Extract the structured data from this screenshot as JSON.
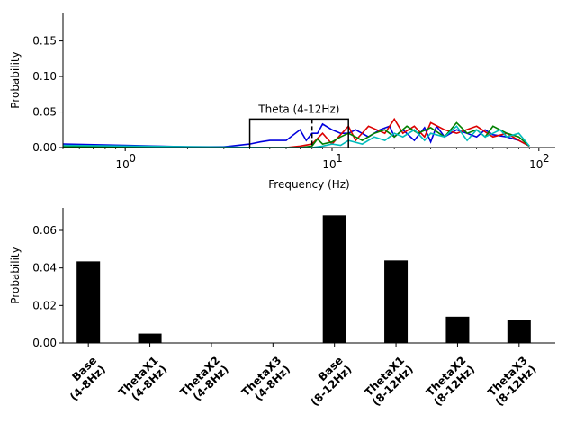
{
  "chart_data": [
    {
      "type": "line",
      "xscale": "log",
      "xlabel": "Frequency (Hz)",
      "ylabel": "Probability",
      "xlim": [
        0.5,
        120
      ],
      "ylim": [
        0,
        0.19
      ],
      "xticks": [
        {
          "value": 1,
          "label": "10",
          "exp": "0"
        },
        {
          "value": 10,
          "label": "10",
          "exp": "1"
        },
        {
          "value": 100,
          "label": "10",
          "exp": "2"
        }
      ],
      "yticks": [
        {
          "value": 0,
          "label": "0.00"
        },
        {
          "value": 0.05,
          "label": "0.05"
        },
        {
          "value": 0.1,
          "label": "0.10"
        },
        {
          "value": 0.15,
          "label": "0.15"
        }
      ],
      "annotation": {
        "text": "Theta (4-12Hz)",
        "from": 4,
        "to": 12,
        "height": 0.04,
        "dashed_at": 8
      },
      "series": [
        {
          "color": "#0000dd",
          "x": [
            0.5,
            1,
            2,
            3,
            4,
            4.5,
            5,
            6,
            7,
            7.5,
            8,
            8.5,
            9,
            10,
            11,
            12,
            13,
            15,
            17,
            19,
            20,
            22,
            25,
            28,
            30,
            32,
            35,
            40,
            45,
            50,
            55,
            60,
            70,
            80,
            90
          ],
          "y": [
            0.005,
            0.003,
            0.001,
            0.001,
            0.005,
            0.008,
            0.01,
            0.01,
            0.025,
            0.01,
            0.02,
            0.02,
            0.033,
            0.025,
            0.02,
            0.02,
            0.025,
            0.015,
            0.025,
            0.03,
            0.015,
            0.025,
            0.01,
            0.028,
            0.008,
            0.03,
            0.015,
            0.025,
            0.02,
            0.015,
            0.025,
            0.018,
            0.015,
            0.01,
            0.002
          ]
        },
        {
          "color": "#dd0000",
          "x": [
            0.5,
            3,
            6,
            7,
            8,
            9,
            10,
            12,
            13,
            15,
            18,
            20,
            22,
            25,
            28,
            30,
            35,
            40,
            50,
            60,
            70,
            80,
            90
          ],
          "y": [
            0.001,
            0.0,
            0.0,
            0.002,
            0.005,
            0.02,
            0.005,
            0.03,
            0.01,
            0.03,
            0.02,
            0.04,
            0.02,
            0.03,
            0.015,
            0.035,
            0.025,
            0.02,
            0.03,
            0.015,
            0.02,
            0.01,
            0.002
          ]
        },
        {
          "color": "#008000",
          "x": [
            0.5,
            5,
            7,
            8,
            8.5,
            9,
            10,
            11,
            12,
            14,
            16,
            18,
            20,
            23,
            26,
            30,
            35,
            40,
            45,
            50,
            55,
            60,
            70,
            80,
            90
          ],
          "y": [
            0.001,
            0.0,
            0.0,
            0.002,
            0.012,
            0.005,
            0.008,
            0.015,
            0.02,
            0.01,
            0.02,
            0.025,
            0.015,
            0.03,
            0.02,
            0.028,
            0.015,
            0.035,
            0.02,
            0.025,
            0.015,
            0.03,
            0.02,
            0.015,
            0.002
          ]
        },
        {
          "color": "#00bbbb",
          "x": [
            0.5,
            5,
            8,
            9,
            10,
            11,
            12,
            14,
            16,
            18,
            20,
            22,
            25,
            28,
            30,
            35,
            40,
            45,
            50,
            55,
            60,
            65,
            70,
            80,
            90
          ],
          "y": [
            0.003,
            0.0,
            0.0,
            0.002,
            0.005,
            0.003,
            0.01,
            0.005,
            0.015,
            0.01,
            0.02,
            0.015,
            0.025,
            0.01,
            0.02,
            0.015,
            0.03,
            0.01,
            0.025,
            0.015,
            0.02,
            0.025,
            0.015,
            0.02,
            0.002
          ]
        }
      ]
    },
    {
      "type": "bar",
      "ylabel": "Probability",
      "ylim": [
        0,
        0.072
      ],
      "color": "#000000",
      "yticks": [
        {
          "value": 0,
          "label": "0.00"
        },
        {
          "value": 0.02,
          "label": "0.02"
        },
        {
          "value": 0.04,
          "label": "0.04"
        },
        {
          "value": 0.06,
          "label": "0.06"
        }
      ],
      "categories": [
        [
          "Base",
          "(4-8Hz)"
        ],
        [
          "ThetaX1",
          "(4-8Hz)"
        ],
        [
          "ThetaX2",
          "(4-8Hz)"
        ],
        [
          "ThetaX3",
          "(4-8Hz)"
        ],
        [
          "Base",
          "(8-12Hz)"
        ],
        [
          "ThetaX1",
          "(8-12Hz)"
        ],
        [
          "ThetaX2",
          "(8-12Hz)"
        ],
        [
          "ThetaX3",
          "(8-12Hz)"
        ]
      ],
      "values": [
        0.0435,
        0.005,
        0.0,
        0.0,
        0.068,
        0.044,
        0.014,
        0.012
      ]
    }
  ]
}
